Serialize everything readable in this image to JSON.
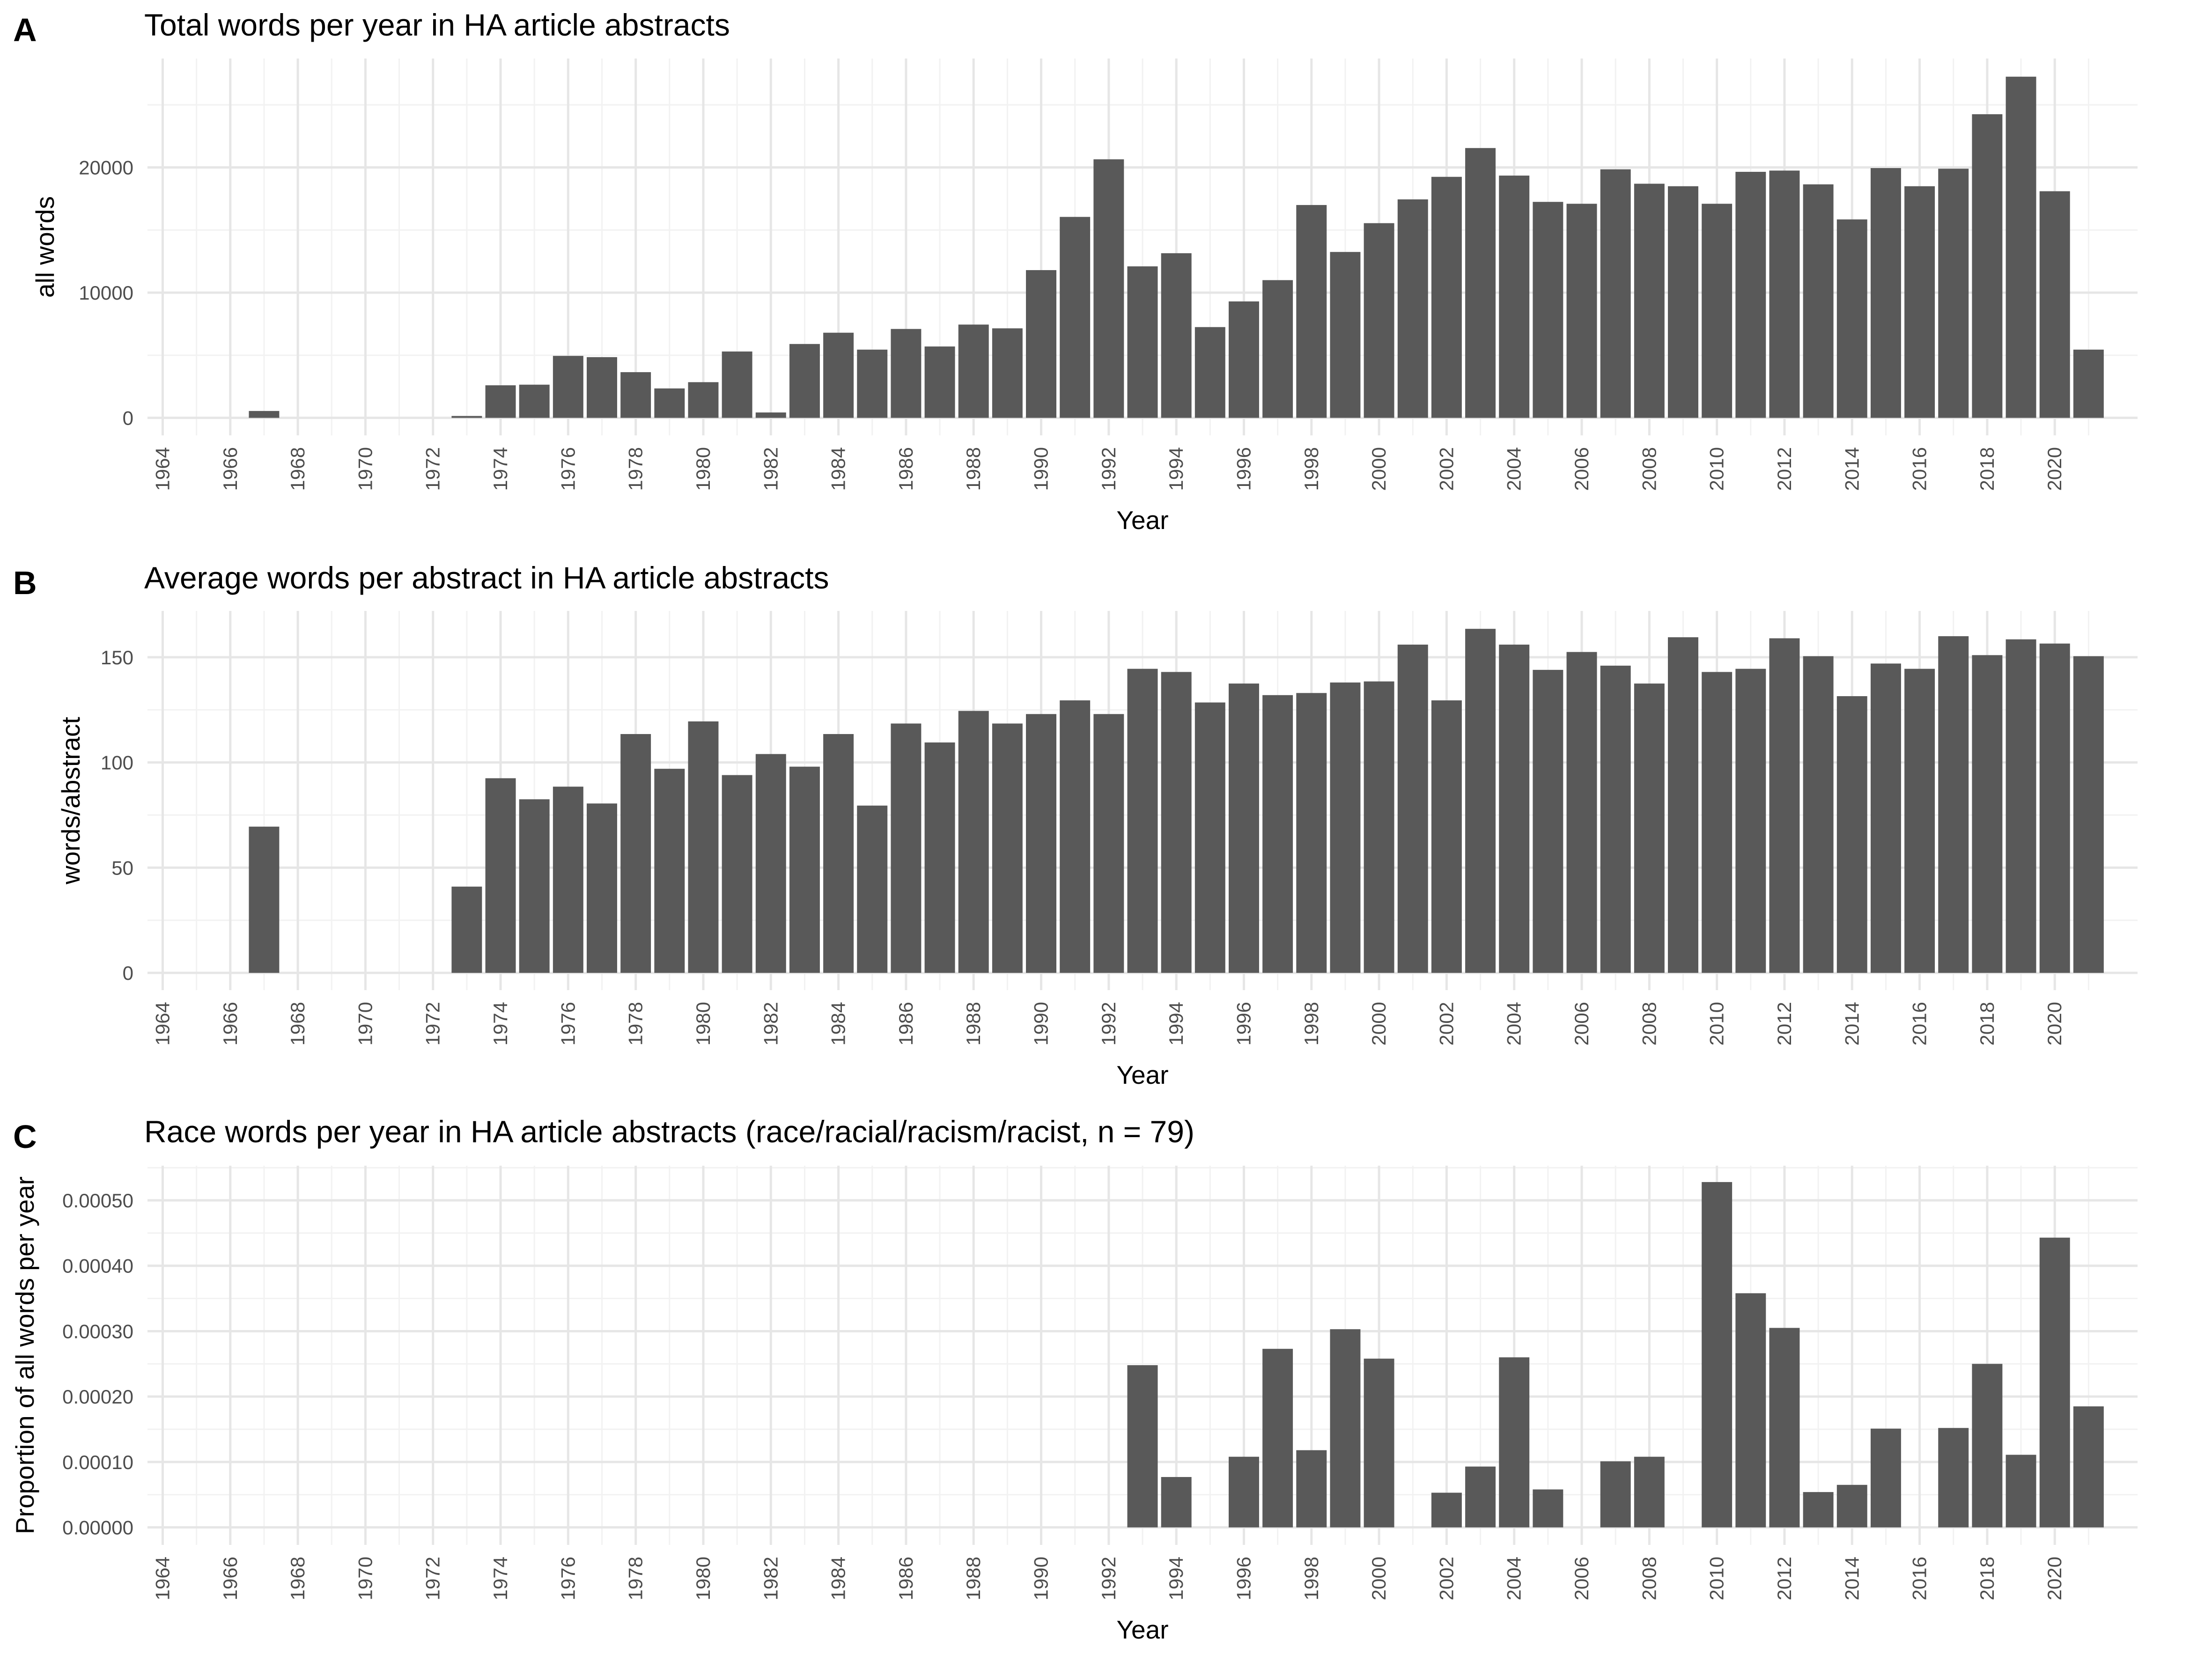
{
  "chart_data": [
    {
      "type": "bar",
      "panel_label": "A",
      "title": "Total words per year in HA article abstracts",
      "xlabel": "Year",
      "ylabel": "all words",
      "xlim": [
        1963.55,
        2022.45
      ],
      "ylim": [
        -1400,
        28700
      ],
      "yticks": [
        0,
        10000,
        20000
      ],
      "ytick_labels": [
        "0",
        "10000",
        "20000"
      ],
      "xticks": [
        1964,
        1966,
        1968,
        1970,
        1972,
        1974,
        1976,
        1978,
        1980,
        1982,
        1984,
        1986,
        1988,
        1990,
        1992,
        1994,
        1996,
        1998,
        2000,
        2002,
        2004,
        2006,
        2008,
        2010,
        2012,
        2014,
        2016,
        2018,
        2020
      ],
      "xtick_labels": [
        "1964",
        "1966",
        "1968",
        "1970",
        "1972",
        "1974",
        "1976",
        "1978",
        "1980",
        "1982",
        "1984",
        "1986",
        "1988",
        "1990",
        "1992",
        "1994",
        "1996",
        "1998",
        "2000",
        "2002",
        "2004",
        "2006",
        "2008",
        "2010",
        "2012",
        "2014",
        "2016",
        "2018",
        "2020"
      ],
      "grid": true,
      "x": [
        1967,
        1973,
        1974,
        1975,
        1976,
        1977,
        1978,
        1979,
        1980,
        1981,
        1982,
        1983,
        1984,
        1985,
        1986,
        1987,
        1988,
        1989,
        1990,
        1991,
        1992,
        1993,
        1994,
        1995,
        1996,
        1997,
        1998,
        1999,
        2000,
        2001,
        2002,
        2003,
        2004,
        2005,
        2006,
        2007,
        2008,
        2009,
        2010,
        2011,
        2012,
        2013,
        2014,
        2015,
        2016,
        2017,
        2018,
        2019,
        2020,
        2021
      ],
      "values": [
        550,
        150,
        2600,
        2650,
        4950,
        4850,
        3650,
        2350,
        2850,
        5300,
        430,
        5900,
        6800,
        5450,
        7100,
        5700,
        7450,
        7150,
        11800,
        16050,
        20650,
        12100,
        13150,
        7250,
        9300,
        11000,
        17000,
        13250,
        15550,
        17450,
        19250,
        21550,
        19350,
        17250,
        17100,
        19850,
        18700,
        18500,
        17100,
        19650,
        19750,
        18650,
        15850,
        19950,
        18500,
        19900,
        24250,
        27250,
        18100,
        5450
      ]
    },
    {
      "type": "bar",
      "panel_label": "B",
      "title": "Average words per abstract in HA article abstracts",
      "xlabel": "Year",
      "ylabel": "words/abstract",
      "xlim": [
        1963.55,
        2022.45
      ],
      "ylim": [
        -8.2,
        172
      ],
      "yticks": [
        0,
        50,
        100,
        150
      ],
      "ytick_labels": [
        "0",
        "50",
        "100",
        "150"
      ],
      "xticks": [
        1964,
        1966,
        1968,
        1970,
        1972,
        1974,
        1976,
        1978,
        1980,
        1982,
        1984,
        1986,
        1988,
        1990,
        1992,
        1994,
        1996,
        1998,
        2000,
        2002,
        2004,
        2006,
        2008,
        2010,
        2012,
        2014,
        2016,
        2018,
        2020
      ],
      "xtick_labels": [
        "1964",
        "1966",
        "1968",
        "1970",
        "1972",
        "1974",
        "1976",
        "1978",
        "1980",
        "1982",
        "1984",
        "1986",
        "1988",
        "1990",
        "1992",
        "1994",
        "1996",
        "1998",
        "2000",
        "2002",
        "2004",
        "2006",
        "2008",
        "2010",
        "2012",
        "2014",
        "2016",
        "2018",
        "2020"
      ],
      "grid": true,
      "x": [
        1967,
        1973,
        1974,
        1975,
        1976,
        1977,
        1978,
        1979,
        1980,
        1981,
        1982,
        1983,
        1984,
        1985,
        1986,
        1987,
        1988,
        1989,
        1990,
        1991,
        1992,
        1993,
        1994,
        1995,
        1996,
        1997,
        1998,
        1999,
        2000,
        2001,
        2002,
        2003,
        2004,
        2005,
        2006,
        2007,
        2008,
        2009,
        2010,
        2011,
        2012,
        2013,
        2014,
        2015,
        2016,
        2017,
        2018,
        2019,
        2020,
        2021
      ],
      "values": [
        69.5,
        41,
        92.5,
        82.5,
        88.5,
        80.5,
        113.5,
        97,
        119.5,
        94,
        104,
        98,
        113.5,
        79.5,
        118.5,
        109.5,
        124.5,
        118.5,
        123,
        129.5,
        123,
        144.5,
        143,
        128.5,
        137.5,
        132,
        133,
        138,
        138.5,
        156,
        129.5,
        163.5,
        156,
        144,
        152.5,
        146,
        137.5,
        159.5,
        143,
        144.5,
        159,
        150.5,
        131.5,
        147,
        144.5,
        160,
        151,
        158.5,
        156.5,
        150.5
      ]
    },
    {
      "type": "bar",
      "panel_label": "C",
      "title": "Race words per year in HA article abstracts (race/racial/racism/racist, n = 79)",
      "xlabel": "Year",
      "ylabel": "Proportion of all words per year",
      "xlim": [
        1963.55,
        2022.45
      ],
      "ylim": [
        -2.68e-05,
        0.000553
      ],
      "yticks": [
        0,
        0.0001,
        0.0002,
        0.0003,
        0.0004,
        0.0005
      ],
      "ytick_labels": [
        "0.00000",
        "0.00010",
        "0.00020",
        "0.00030",
        "0.00040",
        "0.00050"
      ],
      "xticks": [
        1964,
        1966,
        1968,
        1970,
        1972,
        1974,
        1976,
        1978,
        1980,
        1982,
        1984,
        1986,
        1988,
        1990,
        1992,
        1994,
        1996,
        1998,
        2000,
        2002,
        2004,
        2006,
        2008,
        2010,
        2012,
        2014,
        2016,
        2018,
        2020
      ],
      "xtick_labels": [
        "1964",
        "1966",
        "1968",
        "1970",
        "1972",
        "1974",
        "1976",
        "1978",
        "1980",
        "1982",
        "1984",
        "1986",
        "1988",
        "1990",
        "1992",
        "1994",
        "1996",
        "1998",
        "2000",
        "2002",
        "2004",
        "2006",
        "2008",
        "2010",
        "2012",
        "2014",
        "2016",
        "2018",
        "2020"
      ],
      "grid": true,
      "x": [
        1993,
        1994,
        1996,
        1997,
        1998,
        1999,
        2000,
        2002,
        2003,
        2004,
        2005,
        2007,
        2008,
        2010,
        2011,
        2012,
        2013,
        2014,
        2015,
        2017,
        2018,
        2019,
        2020,
        2021
      ],
      "values": [
        0.000248,
        7.7e-05,
        0.000108,
        0.000273,
        0.000118,
        0.000303,
        0.000258,
        5.3e-05,
        9.3e-05,
        0.00026,
        5.8e-05,
        0.000101,
        0.000108,
        0.000528,
        0.000358,
        0.000305,
        5.4e-05,
        6.5e-05,
        0.000151,
        0.000152,
        0.00025,
        0.000111,
        0.000443,
        0.000185
      ]
    }
  ]
}
